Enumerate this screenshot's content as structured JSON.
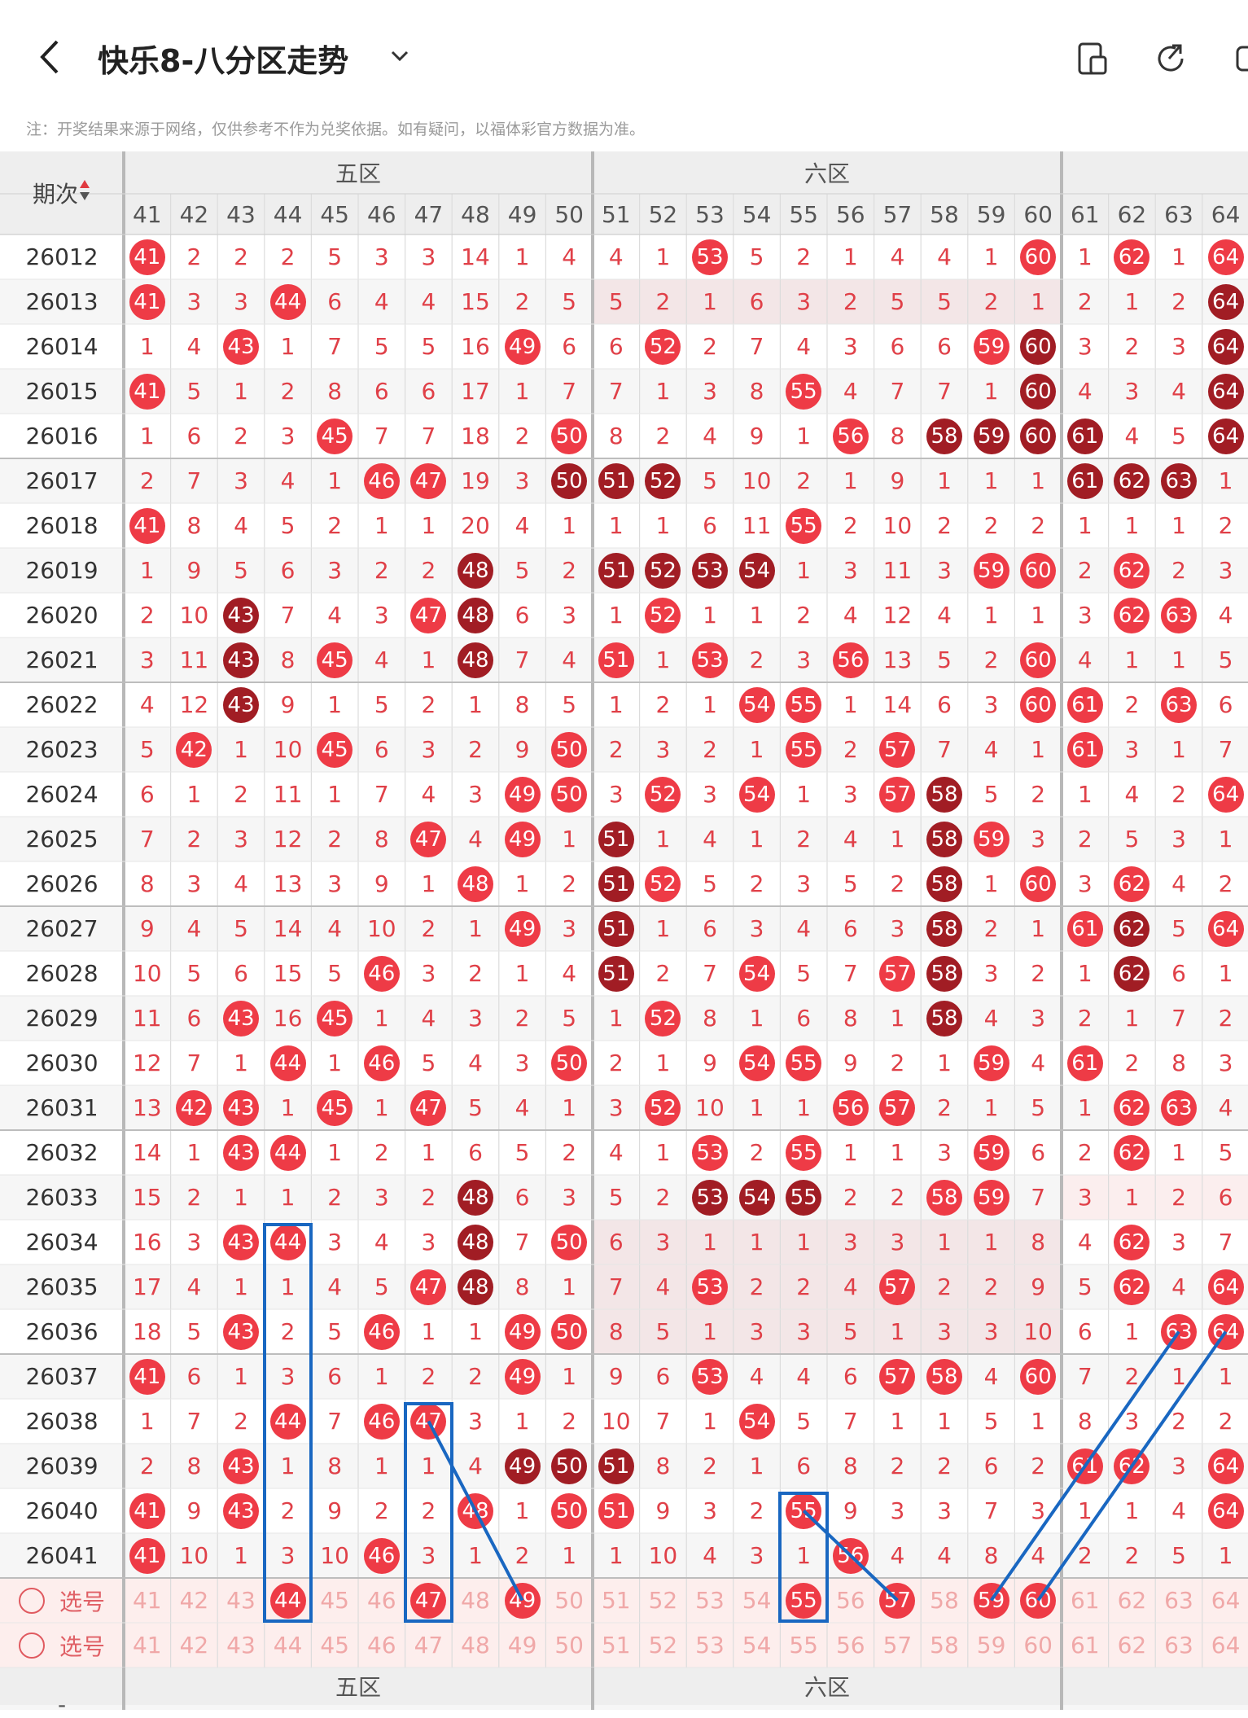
{
  "header": {
    "title": "快乐8-八分区走势",
    "note": "注：开奖结果来源于网络，仅供参考不作为兑奖依据。如有疑问，以福体彩官方数据为准。"
  },
  "table": {
    "issue_header": "期次",
    "zones": [
      "五区",
      "六区"
    ],
    "columns": [
      41,
      42,
      43,
      44,
      45,
      46,
      47,
      48,
      49,
      50,
      51,
      52,
      53,
      54,
      55,
      56,
      57,
      58,
      59,
      60,
      61,
      62,
      63,
      64
    ],
    "select_label": "选号",
    "rows": [
      {
        "issue": "26012",
        "v": [
          41,
          2,
          2,
          2,
          5,
          3,
          3,
          14,
          1,
          4,
          4,
          1,
          53,
          5,
          2,
          1,
          4,
          4,
          1,
          60,
          1,
          62,
          1,
          64
        ]
      },
      {
        "issue": "26013",
        "v": [
          41,
          3,
          3,
          44,
          6,
          4,
          4,
          15,
          2,
          5,
          5,
          2,
          1,
          6,
          3,
          2,
          5,
          5,
          2,
          1,
          2,
          1,
          2,
          64
        ]
      },
      {
        "issue": "26014",
        "v": [
          1,
          4,
          43,
          1,
          7,
          5,
          5,
          16,
          49,
          6,
          6,
          52,
          2,
          7,
          4,
          3,
          6,
          6,
          59,
          60,
          3,
          2,
          3,
          64
        ]
      },
      {
        "issue": "26015",
        "v": [
          41,
          5,
          1,
          2,
          8,
          6,
          6,
          17,
          1,
          7,
          7,
          1,
          3,
          8,
          55,
          4,
          7,
          7,
          1,
          60,
          4,
          3,
          4,
          64
        ]
      },
      {
        "issue": "26016",
        "v": [
          1,
          6,
          2,
          3,
          45,
          7,
          7,
          18,
          2,
          50,
          8,
          2,
          4,
          9,
          1,
          56,
          8,
          58,
          59,
          60,
          61,
          4,
          5,
          64
        ]
      },
      {
        "issue": "26017",
        "v": [
          2,
          7,
          3,
          4,
          1,
          46,
          47,
          19,
          3,
          50,
          51,
          52,
          5,
          10,
          2,
          1,
          9,
          1,
          1,
          1,
          61,
          62,
          63,
          1
        ]
      },
      {
        "issue": "26018",
        "v": [
          41,
          8,
          4,
          5,
          2,
          1,
          1,
          20,
          4,
          1,
          1,
          1,
          6,
          11,
          55,
          2,
          10,
          2,
          2,
          2,
          1,
          1,
          1,
          2
        ]
      },
      {
        "issue": "26019",
        "v": [
          1,
          9,
          5,
          6,
          3,
          2,
          2,
          48,
          5,
          2,
          51,
          52,
          53,
          54,
          1,
          3,
          11,
          3,
          59,
          60,
          2,
          62,
          2,
          3
        ]
      },
      {
        "issue": "26020",
        "v": [
          2,
          10,
          43,
          7,
          4,
          3,
          47,
          48,
          6,
          3,
          1,
          52,
          1,
          1,
          2,
          4,
          12,
          4,
          1,
          1,
          3,
          62,
          63,
          4
        ]
      },
      {
        "issue": "26021",
        "v": [
          3,
          11,
          43,
          8,
          45,
          4,
          1,
          48,
          7,
          4,
          51,
          1,
          53,
          2,
          3,
          56,
          13,
          5,
          2,
          60,
          4,
          1,
          1,
          5
        ]
      },
      {
        "issue": "26022",
        "v": [
          4,
          12,
          43,
          9,
          1,
          5,
          2,
          1,
          8,
          5,
          1,
          2,
          1,
          54,
          55,
          1,
          14,
          6,
          3,
          60,
          61,
          2,
          63,
          6
        ]
      },
      {
        "issue": "26023",
        "v": [
          5,
          42,
          1,
          10,
          45,
          6,
          3,
          2,
          9,
          50,
          2,
          3,
          2,
          1,
          55,
          2,
          57,
          7,
          4,
          1,
          61,
          3,
          1,
          7
        ]
      },
      {
        "issue": "26024",
        "v": [
          6,
          1,
          2,
          11,
          1,
          7,
          4,
          3,
          49,
          50,
          3,
          52,
          3,
          54,
          1,
          3,
          57,
          58,
          5,
          2,
          1,
          4,
          2,
          64
        ]
      },
      {
        "issue": "26025",
        "v": [
          7,
          2,
          3,
          12,
          2,
          8,
          47,
          4,
          49,
          1,
          51,
          1,
          4,
          1,
          2,
          4,
          1,
          58,
          59,
          3,
          2,
          5,
          3,
          1
        ]
      },
      {
        "issue": "26026",
        "v": [
          8,
          3,
          4,
          13,
          3,
          9,
          1,
          48,
          1,
          2,
          51,
          52,
          5,
          2,
          3,
          5,
          2,
          58,
          1,
          60,
          3,
          62,
          4,
          2
        ]
      },
      {
        "issue": "26027",
        "v": [
          9,
          4,
          5,
          14,
          4,
          10,
          2,
          1,
          49,
          3,
          51,
          1,
          6,
          3,
          4,
          6,
          3,
          58,
          2,
          1,
          61,
          62,
          5,
          64
        ]
      },
      {
        "issue": "26028",
        "v": [
          10,
          5,
          6,
          15,
          5,
          46,
          3,
          2,
          1,
          4,
          51,
          2,
          7,
          54,
          5,
          7,
          57,
          58,
          3,
          2,
          1,
          62,
          6,
          1
        ]
      },
      {
        "issue": "26029",
        "v": [
          11,
          6,
          43,
          16,
          45,
          1,
          4,
          3,
          2,
          5,
          1,
          52,
          8,
          1,
          6,
          8,
          1,
          58,
          4,
          3,
          2,
          1,
          7,
          2
        ]
      },
      {
        "issue": "26030",
        "v": [
          12,
          7,
          1,
          44,
          1,
          46,
          5,
          4,
          3,
          50,
          2,
          1,
          9,
          54,
          55,
          9,
          2,
          1,
          59,
          4,
          61,
          2,
          8,
          3
        ]
      },
      {
        "issue": "26031",
        "v": [
          13,
          42,
          43,
          1,
          45,
          1,
          47,
          5,
          4,
          1,
          3,
          52,
          10,
          1,
          1,
          56,
          57,
          2,
          1,
          5,
          1,
          62,
          63,
          4
        ]
      },
      {
        "issue": "26032",
        "v": [
          14,
          1,
          43,
          44,
          1,
          2,
          1,
          6,
          5,
          2,
          4,
          1,
          53,
          2,
          55,
          1,
          1,
          3,
          59,
          6,
          2,
          62,
          1,
          5
        ]
      },
      {
        "issue": "26033",
        "v": [
          15,
          2,
          1,
          1,
          2,
          3,
          2,
          48,
          6,
          3,
          5,
          2,
          53,
          54,
          55,
          2,
          2,
          58,
          59,
          7,
          3,
          1,
          2,
          6
        ]
      },
      {
        "issue": "26034",
        "v": [
          16,
          3,
          43,
          44,
          3,
          4,
          3,
          48,
          7,
          50,
          6,
          3,
          1,
          1,
          1,
          3,
          3,
          1,
          1,
          8,
          4,
          62,
          3,
          7
        ]
      },
      {
        "issue": "26035",
        "v": [
          17,
          4,
          1,
          1,
          4,
          5,
          47,
          48,
          8,
          1,
          7,
          4,
          53,
          2,
          2,
          4,
          57,
          2,
          2,
          9,
          5,
          62,
          4,
          64
        ]
      },
      {
        "issue": "26036",
        "v": [
          18,
          5,
          43,
          2,
          5,
          46,
          1,
          1,
          49,
          50,
          8,
          5,
          1,
          3,
          3,
          5,
          1,
          3,
          3,
          10,
          6,
          1,
          63,
          64
        ]
      },
      {
        "issue": "26037",
        "v": [
          41,
          6,
          1,
          3,
          6,
          1,
          2,
          2,
          49,
          1,
          9,
          6,
          53,
          4,
          4,
          6,
          57,
          58,
          4,
          60,
          7,
          2,
          1,
          1
        ]
      },
      {
        "issue": "26038",
        "v": [
          1,
          7,
          2,
          44,
          7,
          46,
          47,
          3,
          1,
          2,
          10,
          7,
          1,
          54,
          5,
          7,
          1,
          1,
          5,
          1,
          8,
          3,
          2,
          2
        ]
      },
      {
        "issue": "26039",
        "v": [
          2,
          8,
          43,
          1,
          8,
          1,
          1,
          4,
          49,
          50,
          51,
          8,
          2,
          1,
          6,
          8,
          2,
          2,
          6,
          2,
          61,
          62,
          3,
          64
        ]
      },
      {
        "issue": "26040",
        "v": [
          41,
          9,
          43,
          2,
          9,
          2,
          2,
          48,
          1,
          50,
          51,
          9,
          3,
          2,
          55,
          9,
          3,
          3,
          7,
          3,
          1,
          1,
          4,
          64
        ]
      },
      {
        "issue": "26041",
        "v": [
          41,
          10,
          1,
          3,
          10,
          46,
          3,
          1,
          2,
          1,
          1,
          10,
          4,
          3,
          1,
          56,
          4,
          4,
          8,
          4,
          2,
          2,
          5,
          1
        ]
      }
    ],
    "dark_cells": [
      "26013-64",
      "26014-60",
      "26014-64",
      "26015-60",
      "26015-64",
      "26016-58",
      "26016-59",
      "26016-60",
      "26016-61",
      "26016-64",
      "26017-50",
      "26017-51",
      "26017-52",
      "26017-61",
      "26017-62",
      "26017-63",
      "26019-48",
      "26019-51",
      "26019-52",
      "26019-53",
      "26019-54",
      "26020-43",
      "26020-48",
      "26021-43",
      "26021-48",
      "26022-43",
      "26024-58",
      "26025-51",
      "26025-58",
      "26026-51",
      "26026-58",
      "26027-51",
      "26027-58",
      "26027-62",
      "26028-51",
      "26028-58",
      "26028-62",
      "26029-58",
      "26033-48",
      "26033-53",
      "26033-54",
      "26033-55",
      "26034-48",
      "26035-48",
      "26039-49",
      "26039-50",
      "26039-51"
    ],
    "select_row1_selected": [
      44,
      47,
      49,
      55,
      57,
      59,
      60
    ]
  }
}
